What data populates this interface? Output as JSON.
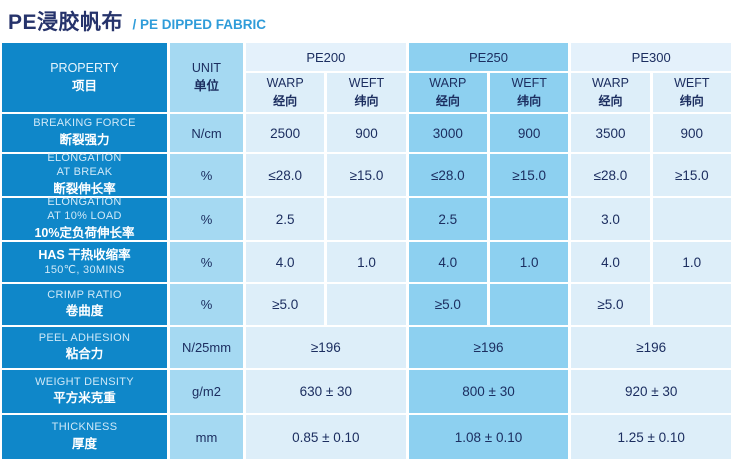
{
  "page": {
    "title_zh": "PE浸胶帆布",
    "title_en": "/ PE DIPPED FABRIC"
  },
  "colors": {
    "header_column_blue": "#0f87c9",
    "unit_column_blue": "#a5d9f2",
    "pe250_highlight_blue": "#8dd0f0",
    "light_cell_blue": "#ddeef9",
    "group_band_light": "#e4f1fb",
    "text_navy": "#1c2e60",
    "title_navy": "#26336b",
    "title_cyan": "#2f9cd9"
  },
  "table": {
    "property_header": {
      "en": "PROPERTY",
      "zh": "项目"
    },
    "unit_header": {
      "en": "UNIT",
      "zh": "单位"
    },
    "groups": [
      {
        "label": "PE200",
        "warp_en": "WARP",
        "warp_zh": "经向",
        "weft_en": "WEFT",
        "weft_zh": "纬向"
      },
      {
        "label": "PE250",
        "warp_en": "WARP",
        "warp_zh": "经向",
        "weft_en": "WEFT",
        "weft_zh": "纬向"
      },
      {
        "label": "PE300",
        "warp_en": "WARP",
        "warp_zh": "经向",
        "weft_en": "WEFT",
        "weft_zh": "纬向"
      }
    ],
    "rows": [
      {
        "lines": [
          "BREAKING FORCE",
          "断裂强力"
        ],
        "unit": "N/cm",
        "cells": [
          "2500",
          "900",
          "3000",
          "900",
          "3500",
          "900"
        ]
      },
      {
        "lines": [
          "ELONGATION",
          "AT BREAK",
          "断裂伸长率"
        ],
        "unit": "%",
        "cells": [
          "≤28.0",
          "≥15.0",
          "≤28.0",
          "≥15.0",
          "≤28.0",
          "≥15.0"
        ]
      },
      {
        "lines": [
          "ELONGATION",
          "AT 10% LOAD",
          "10%定负荷伸长率"
        ],
        "unit": "%",
        "cells": [
          "2.5",
          "",
          "2.5",
          "",
          "3.0",
          ""
        ]
      },
      {
        "lines": [
          "HAS  干热收缩率",
          "150℃, 30MINS"
        ],
        "unit": "%",
        "cells": [
          "4.0",
          "1.0",
          "4.0",
          "1.0",
          "4.0",
          "1.0"
        ]
      },
      {
        "lines": [
          "CRIMP RATIO",
          "卷曲度"
        ],
        "unit": "%",
        "cells": [
          "≥5.0",
          "",
          "≥5.0",
          "",
          "≥5.0",
          ""
        ]
      },
      {
        "lines": [
          "PEEL ADHESION",
          "粘合力"
        ],
        "unit": "N/25mm",
        "cells": [
          "≥196",
          "≥196",
          "≥196"
        ],
        "merged": true
      },
      {
        "lines": [
          "WEIGHT DENSITY",
          "平方米克重"
        ],
        "unit": "g/m2",
        "cells": [
          "630 ± 30",
          "800 ± 30",
          "920 ± 30"
        ],
        "merged": true
      },
      {
        "lines": [
          "THICKNESS",
          "厚度"
        ],
        "unit": "mm",
        "cells": [
          "0.85 ± 0.10",
          "1.08 ± 0.10",
          "1.25 ± 0.10"
        ],
        "merged": true
      }
    ]
  }
}
